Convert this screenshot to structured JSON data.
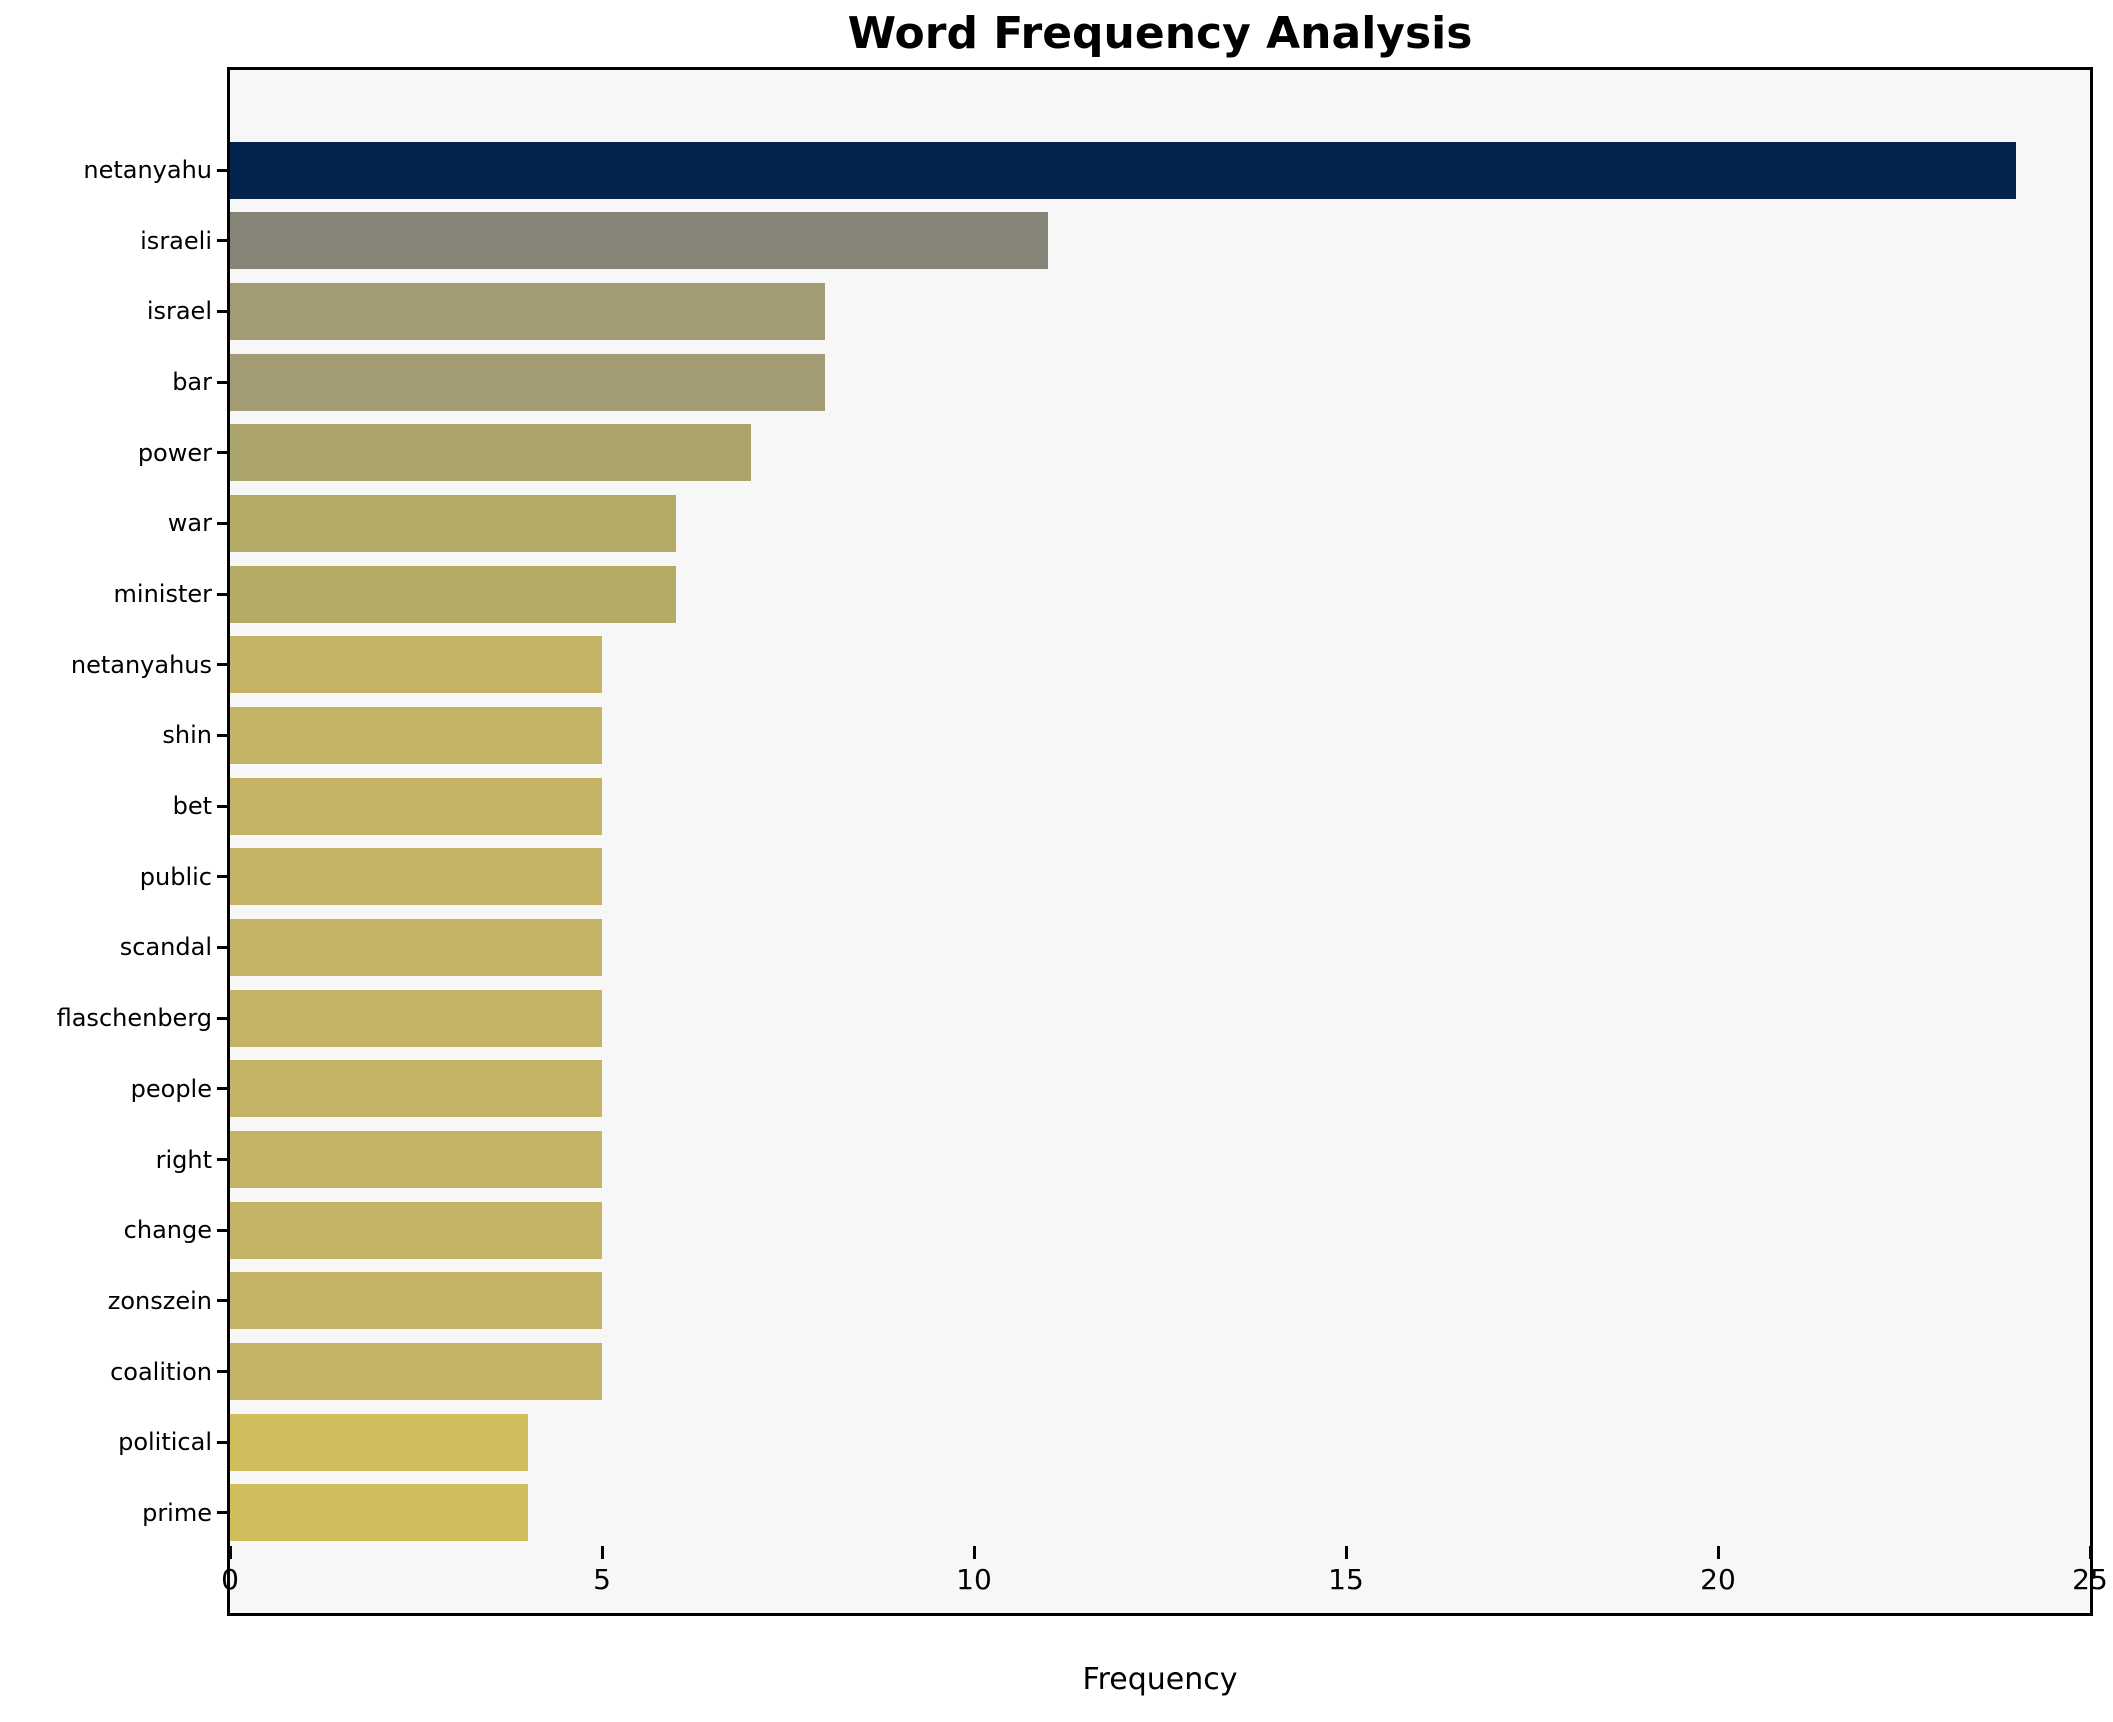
{
  "title": "Word Frequency Analysis",
  "xlabel": "Frequency",
  "chart_data": {
    "type": "bar",
    "orientation": "horizontal",
    "title": "Word Frequency Analysis",
    "xlabel": "Frequency",
    "ylabel": "",
    "xlim": [
      0,
      25
    ],
    "xticks": [
      0,
      5,
      10,
      15,
      20,
      25
    ],
    "xtick_labels": [
      "0",
      "5",
      "10",
      "15",
      "20",
      "25"
    ],
    "grid": false,
    "legend": "none",
    "plot_background": "#f7f7f8",
    "figure_background": "#ffffff",
    "spine_color": "#000000",
    "categories": [
      "netanyahu",
      "israeli",
      "israel",
      "bar",
      "power",
      "war",
      "minister",
      "netanyahus",
      "shin",
      "bet",
      "public",
      "scandal",
      "flaschenberg",
      "people",
      "right",
      "change",
      "zonszein",
      "coalition",
      "political",
      "prime"
    ],
    "values": [
      24,
      11,
      8,
      8,
      7,
      6,
      6,
      5,
      5,
      5,
      5,
      5,
      5,
      5,
      5,
      5,
      5,
      5,
      4,
      4
    ],
    "bar_colors": [
      "#04234c",
      "#868477",
      "#a29b73",
      "#a29b73",
      "#aba46c",
      "#b4ab67",
      "#b4ab67",
      "#c4b365",
      "#c4b365",
      "#c4b365",
      "#c4b365",
      "#c4b365",
      "#c4b365",
      "#c4b365",
      "#c4b365",
      "#c4b365",
      "#c5b366",
      "#c5b366",
      "#d0bd5e",
      "#d0bd5e"
    ]
  }
}
